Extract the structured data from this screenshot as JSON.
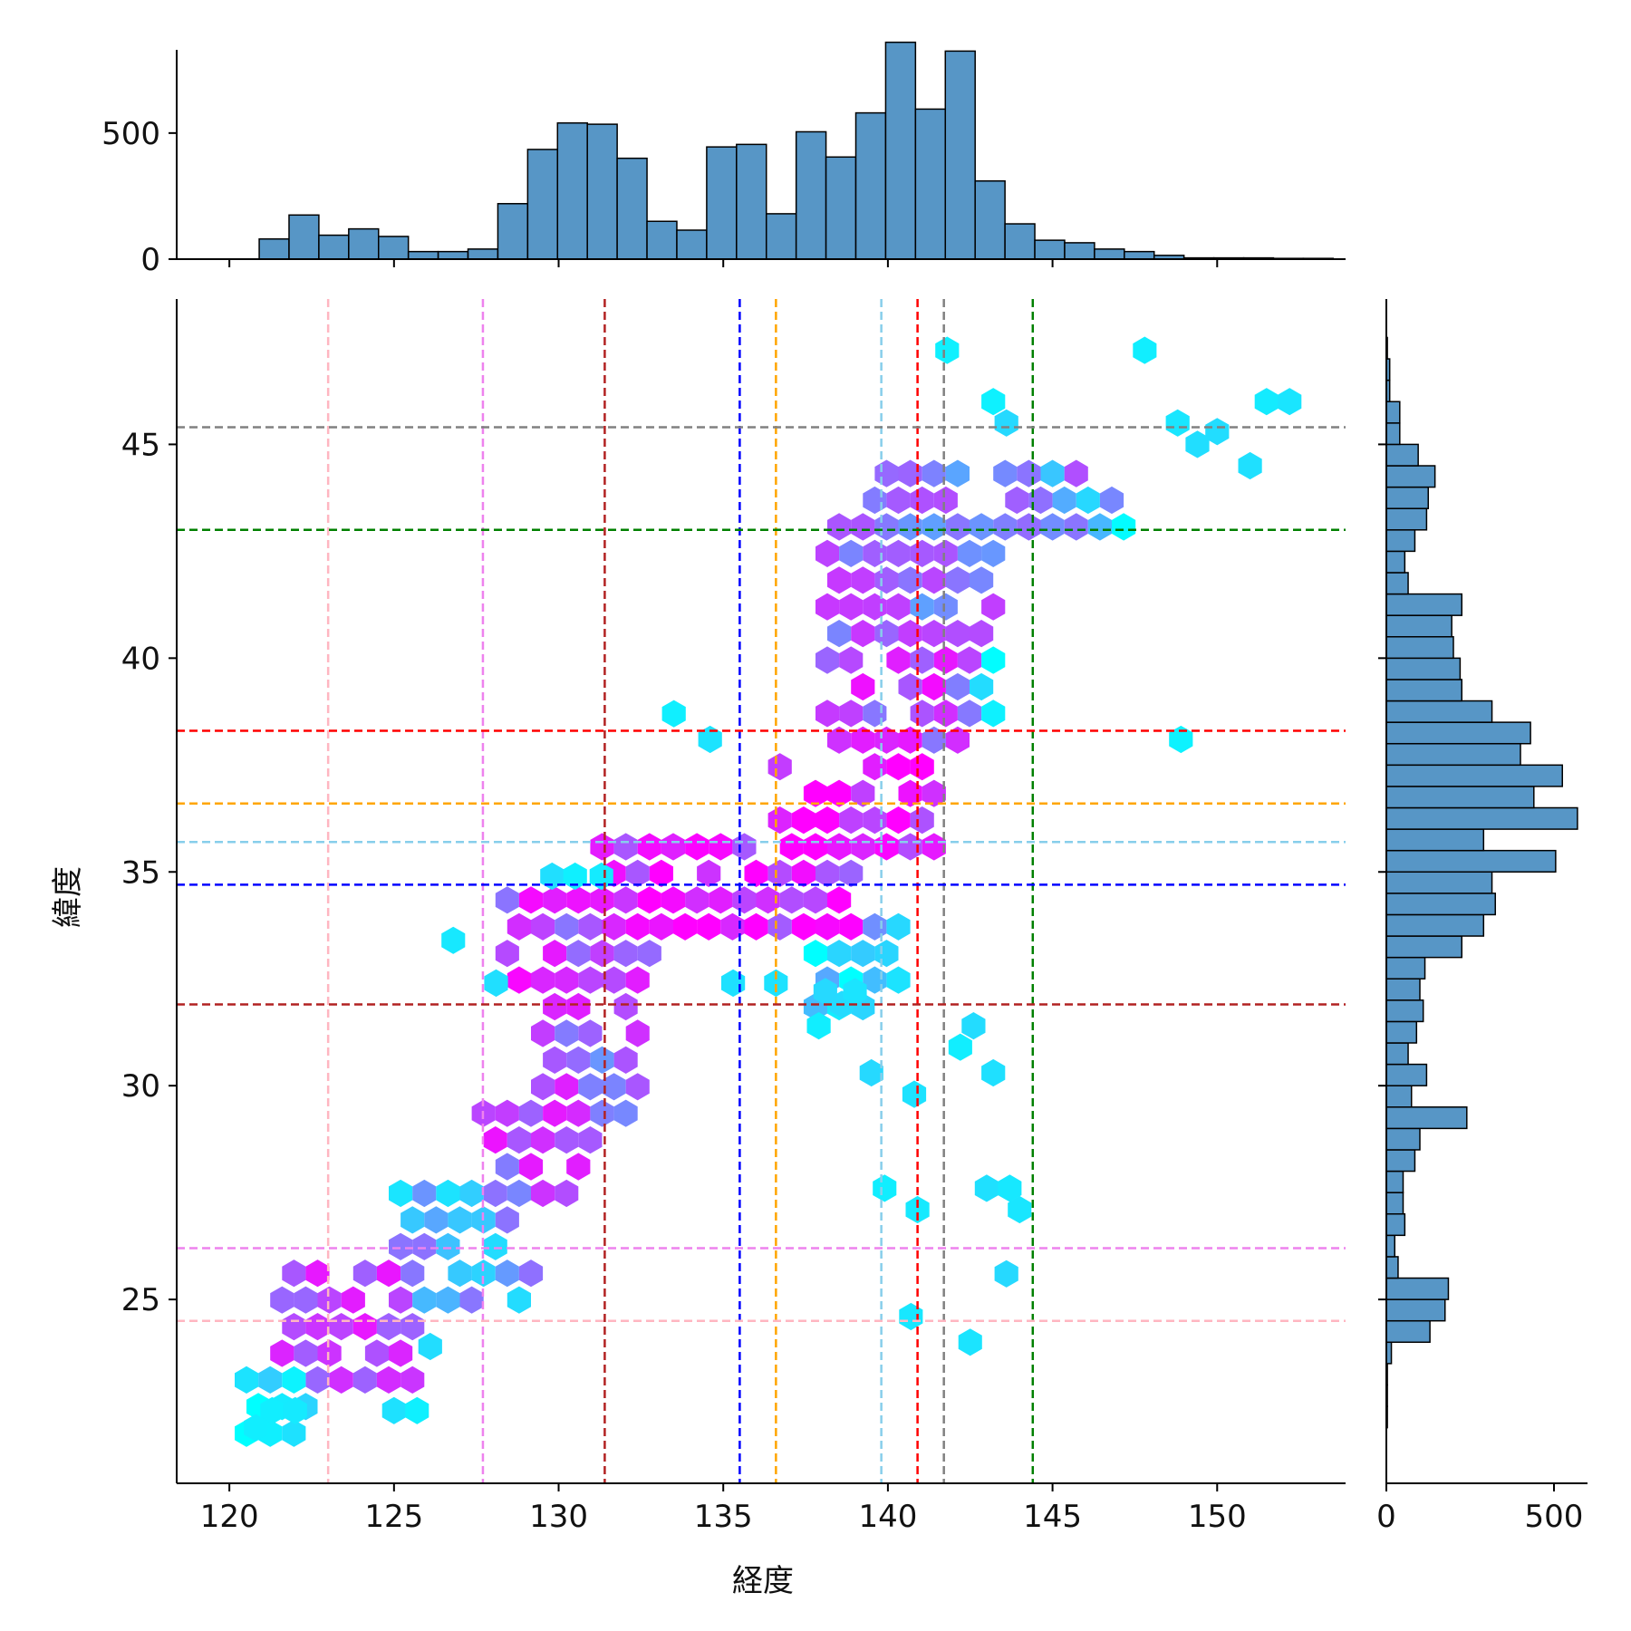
{
  "chart_data": {
    "type": "hexbin",
    "xlabel": "経度",
    "ylabel": "緯度",
    "xlim": [
      118.4,
      153.9
    ],
    "ylim": [
      20.7,
      48.4
    ],
    "xticks": [
      120,
      125,
      130,
      135,
      140,
      145,
      150
    ],
    "yticks": [
      25,
      30,
      35,
      40,
      45
    ],
    "marginal_x": {
      "type": "histogram",
      "ylim": [
        0,
        830
      ],
      "yticks": [
        0,
        500
      ],
      "bin_start": 120.0,
      "bin_width": 0.906,
      "counts": [
        0,
        80,
        175,
        95,
        120,
        90,
        30,
        30,
        40,
        220,
        435,
        540,
        535,
        400,
        150,
        115,
        445,
        455,
        180,
        505,
        405,
        580,
        860,
        595,
        825,
        310,
        140,
        75,
        65,
        40,
        30,
        15,
        5,
        5,
        5,
        3,
        3
      ]
    },
    "marginal_y": {
      "type": "histogram",
      "xlim": [
        0,
        600
      ],
      "xticks": [
        0,
        500
      ],
      "bin_start": 22.0,
      "bin_width": 0.5,
      "counts": [
        3,
        3,
        3,
        15,
        130,
        175,
        185,
        35,
        25,
        55,
        50,
        50,
        85,
        100,
        240,
        75,
        120,
        65,
        90,
        110,
        100,
        115,
        225,
        290,
        325,
        315,
        505,
        290,
        570,
        440,
        525,
        400,
        430,
        315,
        225,
        220,
        200,
        195,
        225,
        65,
        55,
        85,
        120,
        125,
        145,
        95,
        40,
        40,
        10,
        10,
        3
      ]
    },
    "reference_lines": {
      "vertical": [
        {
          "x": 123.0,
          "color": "#ffb6c1"
        },
        {
          "x": 127.7,
          "color": "#ee82ee"
        },
        {
          "x": 131.4,
          "color": "#b22222"
        },
        {
          "x": 135.5,
          "color": "#0000ff"
        },
        {
          "x": 136.6,
          "color": "#ffa500"
        },
        {
          "x": 139.8,
          "color": "#87ceeb"
        },
        {
          "x": 140.9,
          "color": "#ff0000"
        },
        {
          "x": 141.7,
          "color": "#808080"
        },
        {
          "x": 144.4,
          "color": "#008000"
        }
      ],
      "horizontal": [
        {
          "y": 45.4,
          "color": "#808080"
        },
        {
          "y": 43.0,
          "color": "#008000"
        },
        {
          "y": 38.3,
          "color": "#ff0000"
        },
        {
          "y": 36.6,
          "color": "#ffa500"
        },
        {
          "y": 35.7,
          "color": "#87ceeb"
        },
        {
          "y": 34.7,
          "color": "#0000ff"
        },
        {
          "y": 31.9,
          "color": "#b22222"
        },
        {
          "y": 26.2,
          "color": "#ee82ee"
        },
        {
          "y": 24.5,
          "color": "#ffb6c1"
        }
      ]
    },
    "hex_colormap": "cool",
    "bar_color": "#5796c6",
    "density_regions": [
      {
        "lon": [
          121.5,
          125.8
        ],
        "lat": [
          22.5,
          25.8
        ],
        "density": 0.7
      },
      {
        "lon": [
          120.5,
          122.5
        ],
        "lat": [
          21.8,
          23.3
        ],
        "density": 0.1
      },
      {
        "lon": [
          125.0,
          129.5
        ],
        "lat": [
          24.5,
          27.5
        ],
        "density": 0.35
      },
      {
        "lon": [
          127.5,
          131.0
        ],
        "lat": [
          27.0,
          29.6
        ],
        "density": 0.7
      },
      {
        "lon": [
          129.5,
          132.5
        ],
        "lat": [
          29.0,
          32.5
        ],
        "density": 0.65
      },
      {
        "lon": [
          128.0,
          133.0
        ],
        "lat": [
          32.0,
          34.5
        ],
        "density": 0.75
      },
      {
        "lon": [
          131.0,
          139.0
        ],
        "lat": [
          33.5,
          36.0
        ],
        "density": 0.85
      },
      {
        "lon": [
          136.5,
          141.5
        ],
        "lat": [
          35.0,
          37.8
        ],
        "density": 0.9
      },
      {
        "lon": [
          138.0,
          142.5
        ],
        "lat": [
          37.5,
          40.5
        ],
        "density": 0.75
      },
      {
        "lon": [
          138.0,
          143.5
        ],
        "lat": [
          40.0,
          43.3
        ],
        "density": 0.6
      },
      {
        "lon": [
          139.5,
          146.0
        ],
        "lat": [
          42.5,
          44.5
        ],
        "density": 0.45
      },
      {
        "lon": [
          145.0,
          147.5
        ],
        "lat": [
          42.8,
          44.2
        ],
        "density": 0.25
      },
      {
        "lon": [
          137.5,
          140.5
        ],
        "lat": [
          31.5,
          34.0
        ],
        "density": 0.2
      },
      {
        "lon": [
          141.5,
          143.5
        ],
        "lat": [
          38.5,
          41.0
        ],
        "density": 0.25
      }
    ],
    "sparse_hexes": [
      [
        141.8,
        47.2
      ],
      [
        147.8,
        47.2
      ],
      [
        143.2,
        46.0
      ],
      [
        143.6,
        45.5
      ],
      [
        148.8,
        45.5
      ],
      [
        151.5,
        46.0
      ],
      [
        152.2,
        46.0
      ],
      [
        150.0,
        45.3
      ],
      [
        151.0,
        44.5
      ],
      [
        149.4,
        45.0
      ],
      [
        148.9,
        38.1
      ],
      [
        133.5,
        38.7
      ],
      [
        134.6,
        38.1
      ],
      [
        129.8,
        34.9
      ],
      [
        130.5,
        34.9
      ],
      [
        131.3,
        34.9
      ],
      [
        126.8,
        33.4
      ],
      [
        128.1,
        32.4
      ],
      [
        135.3,
        32.4
      ],
      [
        136.6,
        32.4
      ],
      [
        137.9,
        31.4
      ],
      [
        138.6,
        31.9
      ],
      [
        139.5,
        30.3
      ],
      [
        140.8,
        29.8
      ],
      [
        143.2,
        30.3
      ],
      [
        142.2,
        30.9
      ],
      [
        142.6,
        31.4
      ],
      [
        139.9,
        27.6
      ],
      [
        140.9,
        27.1
      ],
      [
        143.0,
        27.6
      ],
      [
        143.7,
        27.6
      ],
      [
        144.0,
        27.1
      ],
      [
        143.6,
        25.6
      ],
      [
        140.7,
        24.6
      ],
      [
        142.5,
        24.0
      ],
      [
        125.0,
        22.4
      ],
      [
        125.7,
        22.4
      ],
      [
        121.3,
        22.4
      ],
      [
        120.8,
        22.0
      ],
      [
        126.1,
        23.9
      ],
      [
        122.0,
        22.4
      ],
      [
        138.1,
        32.2
      ],
      [
        139.0,
        32.2
      ]
    ]
  }
}
